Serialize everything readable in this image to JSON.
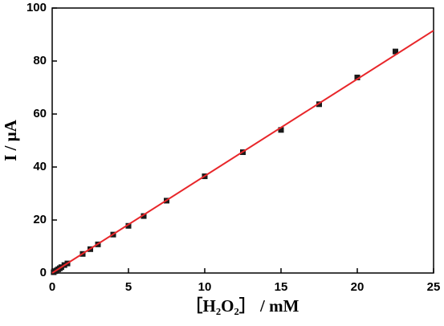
{
  "chart_data": {
    "type": "scatter",
    "x_label": "［H₂O₂］ / mM",
    "y_label": "I / μA",
    "x": [
      0.1,
      0.2,
      0.3,
      0.4,
      0.5,
      0.6,
      0.8,
      1,
      2,
      2.5,
      3,
      4,
      5,
      6,
      7.5,
      10,
      12.5,
      15,
      17.5,
      20,
      22.5
    ],
    "series": [
      {
        "color": "#1a1a1a",
        "values": [
          0.3,
          0.7,
          1.0,
          1.4,
          1.8,
          2.2,
          3.0,
          3.6,
          7.2,
          9.0,
          10.8,
          14.5,
          17.8,
          21.5,
          27.3,
          36.5,
          45.6,
          54.0,
          63.7,
          73.8,
          83.6
        ]
      }
    ],
    "fit": {
      "color": "#e8262a",
      "x": [
        0,
        25
      ],
      "values": [
        0,
        91.5
      ]
    },
    "xlim": [
      0,
      25
    ],
    "xticks": [
      0,
      5,
      10,
      15,
      20,
      25
    ],
    "ylim": [
      0,
      100
    ],
    "yticks": [
      0,
      20,
      40,
      60,
      80,
      100
    ]
  }
}
